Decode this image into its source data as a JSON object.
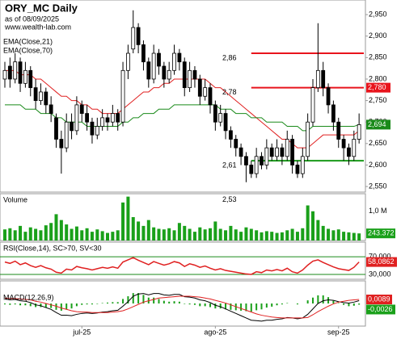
{
  "chart_data": {
    "type": "candlestick",
    "title": "ORY_MC Daily",
    "subtitle": "as of 08/09/2025",
    "source": "www.wealth-lab.com",
    "categories": [
      null,
      null,
      null,
      null,
      null,
      null,
      null,
      null,
      null,
      null,
      null,
      null,
      null,
      null,
      null,
      "jul-25",
      null,
      null,
      null,
      null,
      null,
      null,
      null,
      null,
      null,
      null,
      null,
      null,
      null,
      null,
      null,
      null,
      null,
      null,
      null,
      null,
      null,
      null,
      null,
      null,
      null,
      "ago-25",
      null,
      null,
      null,
      null,
      null,
      null,
      null,
      null,
      null,
      null,
      null,
      null,
      null,
      null,
      null,
      null,
      null,
      null,
      null,
      null,
      null,
      null,
      null,
      "sep-25",
      null,
      null,
      null,
      null
    ],
    "ohlc": [
      [
        2.8,
        2.84,
        2.78,
        2.82
      ],
      [
        2.83,
        2.85,
        2.78,
        2.8
      ],
      [
        2.8,
        2.86,
        2.79,
        2.84
      ],
      [
        2.84,
        2.85,
        2.77,
        2.79
      ],
      [
        2.79,
        2.84,
        2.78,
        2.82
      ],
      [
        2.82,
        2.83,
        2.76,
        2.78
      ],
      [
        2.78,
        2.8,
        2.73,
        2.75
      ],
      [
        2.75,
        2.79,
        2.74,
        2.77
      ],
      [
        2.77,
        2.78,
        2.72,
        2.74
      ],
      [
        2.74,
        2.76,
        2.7,
        2.72
      ],
      [
        2.71,
        2.72,
        2.64,
        2.66
      ],
      [
        2.66,
        2.68,
        2.58,
        2.64
      ],
      [
        2.64,
        2.72,
        2.63,
        2.7
      ],
      [
        2.7,
        2.72,
        2.66,
        2.68
      ],
      [
        2.68,
        2.76,
        2.67,
        2.74
      ],
      [
        2.74,
        2.75,
        2.7,
        2.72
      ],
      [
        2.72,
        2.74,
        2.68,
        2.7
      ],
      [
        2.7,
        2.71,
        2.65,
        2.67
      ],
      [
        2.67,
        2.71,
        2.66,
        2.69
      ],
      [
        2.69,
        2.73,
        2.68,
        2.71
      ],
      [
        2.71,
        2.72,
        2.68,
        2.7
      ],
      [
        2.7,
        2.74,
        2.69,
        2.72
      ],
      [
        2.72,
        2.73,
        2.68,
        2.7
      ],
      [
        2.7,
        2.84,
        2.69,
        2.82
      ],
      [
        2.82,
        2.88,
        2.8,
        2.86
      ],
      [
        2.87,
        2.96,
        2.86,
        2.92
      ],
      [
        2.92,
        2.93,
        2.86,
        2.88
      ],
      [
        2.88,
        2.89,
        2.82,
        2.84
      ],
      [
        2.84,
        2.85,
        2.78,
        2.8
      ],
      [
        2.8,
        2.88,
        2.79,
        2.86
      ],
      [
        2.86,
        2.87,
        2.81,
        2.83
      ],
      [
        2.83,
        2.84,
        2.78,
        2.8
      ],
      [
        2.8,
        2.84,
        2.79,
        2.82
      ],
      [
        2.82,
        2.88,
        2.81,
        2.86
      ],
      [
        2.86,
        2.87,
        2.82,
        2.84
      ],
      [
        2.84,
        2.85,
        2.76,
        2.78
      ],
      [
        2.78,
        2.84,
        2.77,
        2.82
      ],
      [
        2.82,
        2.83,
        2.78,
        2.8
      ],
      [
        2.8,
        2.81,
        2.74,
        2.76
      ],
      [
        2.76,
        2.8,
        2.75,
        2.78
      ],
      [
        2.78,
        2.79,
        2.72,
        2.74
      ],
      [
        2.74,
        2.75,
        2.68,
        2.7
      ],
      [
        2.7,
        2.74,
        2.69,
        2.72
      ],
      [
        2.72,
        2.73,
        2.66,
        2.68
      ],
      [
        2.68,
        2.69,
        2.64,
        2.66
      ],
      [
        2.66,
        2.67,
        2.62,
        2.64
      ],
      [
        2.64,
        2.65,
        2.6,
        2.62
      ],
      [
        2.62,
        2.63,
        2.56,
        2.6
      ],
      [
        2.6,
        2.61,
        2.57,
        2.58
      ],
      [
        2.58,
        2.64,
        2.57,
        2.62
      ],
      [
        2.62,
        2.63,
        2.59,
        2.6
      ],
      [
        2.6,
        2.66,
        2.59,
        2.64
      ],
      [
        2.64,
        2.65,
        2.61,
        2.62
      ],
      [
        2.62,
        2.66,
        2.61,
        2.64
      ],
      [
        2.64,
        2.65,
        2.6,
        2.62
      ],
      [
        2.62,
        2.68,
        2.61,
        2.66
      ],
      [
        2.66,
        2.67,
        2.58,
        2.6
      ],
      [
        2.6,
        2.61,
        2.57,
        2.58
      ],
      [
        2.58,
        2.64,
        2.57,
        2.62
      ],
      [
        2.62,
        2.72,
        2.61,
        2.7
      ],
      [
        2.7,
        2.8,
        2.69,
        2.78
      ],
      [
        2.78,
        2.93,
        2.77,
        2.82
      ],
      [
        2.82,
        2.84,
        2.76,
        2.78
      ],
      [
        2.78,
        2.79,
        2.72,
        2.74
      ],
      [
        2.74,
        2.75,
        2.68,
        2.7
      ],
      [
        2.7,
        2.71,
        2.64,
        2.66
      ],
      [
        2.66,
        2.67,
        2.61,
        2.64
      ],
      [
        2.64,
        2.65,
        2.6,
        2.62
      ],
      [
        2.62,
        2.68,
        2.61,
        2.66
      ],
      [
        2.66,
        2.72,
        2.65,
        2.694
      ]
    ],
    "last_close_label": "2,694",
    "ylim": [
      2.537,
      2.984
    ],
    "yticks": [
      {
        "value": 2.55,
        "label": "2,550"
      },
      {
        "value": 2.6,
        "label": "2,600"
      },
      {
        "value": 2.65,
        "label": "2,650"
      },
      {
        "value": 2.7,
        "label": "2,700"
      },
      {
        "value": 2.75,
        "label": "2,750"
      },
      {
        "value": 2.8,
        "label": "2,800"
      },
      {
        "value": 2.85,
        "label": "2,850"
      },
      {
        "value": 2.9,
        "label": "2,900"
      },
      {
        "value": 2.95,
        "label": "2,950"
      }
    ],
    "levels": [
      {
        "value": 2.86,
        "label": "2,86",
        "color": "#e8141c"
      },
      {
        "value": 2.78,
        "label": "2,78",
        "color": "#e8141c",
        "right_label": "2,780"
      },
      {
        "value": 2.61,
        "label": "2,61",
        "color": "#1a9a1a"
      },
      {
        "value": 2.53,
        "label": "2,53"
      }
    ],
    "series": [
      {
        "name": "EMA(Close,21)",
        "color": "#e02020",
        "values": [
          2.82,
          2.82,
          2.82,
          2.81,
          2.81,
          2.81,
          2.8,
          2.8,
          2.79,
          2.78,
          2.77,
          2.76,
          2.76,
          2.75,
          2.75,
          2.74,
          2.74,
          2.73,
          2.73,
          2.72,
          2.72,
          2.72,
          2.72,
          2.73,
          2.74,
          2.75,
          2.76,
          2.77,
          2.77,
          2.78,
          2.78,
          2.79,
          2.79,
          2.8,
          2.8,
          2.8,
          2.8,
          2.8,
          2.8,
          2.8,
          2.79,
          2.78,
          2.78,
          2.77,
          2.76,
          2.75,
          2.74,
          2.73,
          2.72,
          2.71,
          2.7,
          2.69,
          2.68,
          2.67,
          2.66,
          2.66,
          2.65,
          2.64,
          2.64,
          2.64,
          2.65,
          2.66,
          2.67,
          2.67,
          2.67,
          2.67,
          2.67,
          2.67,
          2.67,
          2.68
        ]
      },
      {
        "name": "EMA(Close,70)",
        "color": "#1a8a1a",
        "values": [
          2.74,
          2.74,
          2.74,
          2.74,
          2.73,
          2.73,
          2.73,
          2.72,
          2.72,
          2.72,
          2.71,
          2.71,
          2.7,
          2.7,
          2.7,
          2.7,
          2.69,
          2.69,
          2.69,
          2.69,
          2.69,
          2.69,
          2.69,
          2.7,
          2.7,
          2.71,
          2.71,
          2.72,
          2.72,
          2.72,
          2.73,
          2.73,
          2.73,
          2.74,
          2.74,
          2.74,
          2.74,
          2.74,
          2.74,
          2.74,
          2.74,
          2.74,
          2.73,
          2.73,
          2.73,
          2.72,
          2.72,
          2.72,
          2.71,
          2.71,
          2.71,
          2.7,
          2.7,
          2.7,
          2.7,
          2.69,
          2.69,
          2.69,
          2.68,
          2.68,
          2.69,
          2.69,
          2.69,
          2.69,
          2.69,
          2.69,
          2.69,
          2.69,
          2.69,
          2.694
        ]
      }
    ],
    "volume": {
      "name": "Volume",
      "color": "#1aa01a",
      "ylim": [
        0,
        1600000
      ],
      "yticks": [
        {
          "value": 1000000,
          "label": "1,0 M"
        }
      ],
      "last_label": "243.372",
      "values": [
        380000,
        420000,
        350000,
        500000,
        300000,
        450000,
        400000,
        350000,
        520000,
        600000,
        900000,
        700000,
        550000,
        400000,
        480000,
        350000,
        420000,
        300000,
        380000,
        320000,
        260000,
        300000,
        350000,
        1300000,
        1500000,
        800000,
        650000,
        500000,
        700000,
        450000,
        400000,
        380000,
        420000,
        350000,
        600000,
        500000,
        400000,
        300000,
        450000,
        380000,
        420000,
        650000,
        400000,
        350000,
        500000,
        380000,
        300000,
        450000,
        400000,
        350000,
        280000,
        320000,
        300000,
        260000,
        280000,
        350000,
        400000,
        300000,
        420000,
        1200000,
        1000000,
        700000,
        500000,
        400000,
        350000,
        380000,
        300000,
        280000,
        260000,
        243372
      ]
    },
    "rsi": {
      "name": "RSI(Close,14), SC>70, SV<30",
      "color": "#e02020",
      "ylim": [
        19,
        103
      ],
      "levels": [
        30,
        70
      ],
      "yticks": [
        {
          "value": 30,
          "label": "30,000"
        },
        {
          "value": 70,
          "label": "70,000"
        }
      ],
      "last_label": "58,0862",
      "values": [
        58,
        55,
        60,
        52,
        56,
        50,
        46,
        50,
        45,
        42,
        35,
        33,
        42,
        40,
        48,
        45,
        43,
        40,
        43,
        46,
        44,
        47,
        44,
        58,
        63,
        68,
        62,
        57,
        52,
        59,
        55,
        51,
        54,
        59,
        56,
        48,
        54,
        51,
        46,
        49,
        44,
        40,
        43,
        39,
        37,
        35,
        33,
        31,
        30,
        36,
        34,
        40,
        38,
        41,
        38,
        44,
        36,
        33,
        40,
        51,
        60,
        63,
        57,
        52,
        47,
        43,
        41,
        39,
        46,
        58.0862
      ]
    },
    "macd": {
      "name": "MACD(12,26,9)",
      "ylim": [
        -0.05,
        0.05
      ],
      "macd": {
        "color": "#000000",
        "values": [
          0.01,
          0.008,
          0.009,
          0.006,
          0.005,
          0.002,
          -0.003,
          -0.005,
          -0.009,
          -0.013,
          -0.02,
          -0.026,
          -0.026,
          -0.027,
          -0.024,
          -0.022,
          -0.021,
          -0.022,
          -0.021,
          -0.019,
          -0.018,
          -0.016,
          -0.015,
          -0.006,
          0.004,
          0.016,
          0.021,
          0.022,
          0.019,
          0.022,
          0.022,
          0.019,
          0.018,
          0.02,
          0.02,
          0.015,
          0.014,
          0.012,
          0.008,
          0.006,
          0.002,
          -0.004,
          -0.007,
          -0.012,
          -0.017,
          -0.022,
          -0.027,
          -0.032,
          -0.037,
          -0.038,
          -0.039,
          -0.037,
          -0.037,
          -0.035,
          -0.034,
          -0.031,
          -0.032,
          -0.034,
          -0.032,
          -0.024,
          -0.012,
          0.0,
          0.006,
          0.008,
          0.007,
          0.004,
          0.002,
          0.001,
          0.003,
          0.0063
        ]
      },
      "signal": {
        "color": "#e02020",
        "last_label": "0,0089",
        "values": [
          0.012,
          0.011,
          0.011,
          0.01,
          0.009,
          0.008,
          0.005,
          0.003,
          0.0,
          -0.003,
          -0.006,
          -0.01,
          -0.013,
          -0.016,
          -0.018,
          -0.019,
          -0.019,
          -0.02,
          -0.02,
          -0.02,
          -0.02,
          -0.019,
          -0.018,
          -0.016,
          -0.012,
          -0.007,
          -0.002,
          0.003,
          0.006,
          0.009,
          0.012,
          0.013,
          0.014,
          0.015,
          0.016,
          0.016,
          0.016,
          0.015,
          0.014,
          0.012,
          0.01,
          0.007,
          0.004,
          0.001,
          -0.003,
          -0.007,
          -0.011,
          -0.015,
          -0.019,
          -0.023,
          -0.026,
          -0.028,
          -0.03,
          -0.031,
          -0.032,
          -0.032,
          -0.032,
          -0.032,
          -0.032,
          -0.031,
          -0.025,
          -0.018,
          -0.012,
          -0.006,
          -0.001,
          0.003,
          0.005,
          0.007,
          0.008,
          0.0089
        ]
      },
      "hist": {
        "color": "#1aa01a",
        "last_label": "-0,0026",
        "values": [
          -0.002,
          -0.003,
          -0.002,
          -0.004,
          -0.004,
          -0.006,
          -0.008,
          -0.008,
          -0.009,
          -0.01,
          -0.014,
          -0.016,
          -0.013,
          -0.011,
          -0.006,
          -0.003,
          -0.002,
          -0.002,
          -0.001,
          0.001,
          0.002,
          0.003,
          0.003,
          0.01,
          0.016,
          0.023,
          0.023,
          0.019,
          0.013,
          0.013,
          0.01,
          0.006,
          0.004,
          0.005,
          0.004,
          -0.001,
          -0.002,
          -0.003,
          -0.006,
          -0.006,
          -0.008,
          -0.011,
          -0.011,
          -0.013,
          -0.014,
          -0.015,
          -0.016,
          -0.017,
          -0.018,
          -0.015,
          -0.013,
          -0.009,
          -0.007,
          -0.004,
          -0.002,
          0.001,
          0,
          -0.002,
          0,
          0.007,
          0.013,
          0.018,
          0.018,
          0.014,
          0.006,
          0.001,
          -0.003,
          -0.006,
          -0.005,
          -0.0026
        ]
      }
    }
  }
}
